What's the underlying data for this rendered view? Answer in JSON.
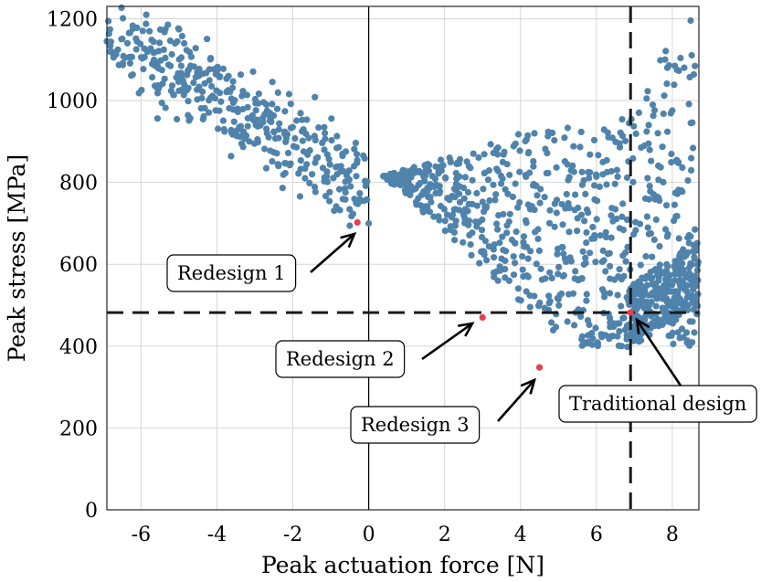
{
  "chart_data": {
    "type": "scatter",
    "title": "",
    "xlabel": "Peak actuation force [N]",
    "ylabel": "Peak stress [MPa]",
    "xlim": [
      -6.9,
      8.7
    ],
    "ylim": [
      0,
      1230
    ],
    "xticks": [
      -6,
      -4,
      -2,
      0,
      2,
      4,
      6,
      8
    ],
    "xtick_labels": [
      "-6",
      "-4",
      "-2",
      "0",
      "2",
      "4",
      "6",
      "8"
    ],
    "yticks": [
      0,
      200,
      400,
      600,
      800,
      1000,
      1200
    ],
    "ytick_labels": [
      "0",
      "200",
      "400",
      "600",
      "800",
      "1000",
      "1200"
    ],
    "grid": true,
    "zero_line_x": 0,
    "reference_lines": {
      "x": 6.9,
      "y": 482
    },
    "colors": {
      "samples": "#4f83ab",
      "highlight": "#e8404a",
      "reference": "#1a1a1a"
    },
    "series": [
      {
        "clusters": [
          {
            "x_range": [
              -6.9,
              0
            ],
            "x_center": -3.4,
            "y_at_x_min": 1160,
            "y_at_x_max": 790,
            "spread": 85,
            "count": 390
          },
          {
            "x_range": [
              0.2,
              5.6
            ],
            "y_range": [
              430,
              940
            ],
            "count": 430
          },
          {
            "x_range": [
              5.6,
              8.7
            ],
            "y_range": [
              400,
              1220
            ],
            "count": 320
          },
          {
            "x_range": [
              6.8,
              8.7
            ],
            "y_range": [
              430,
              700
            ],
            "count": 260
          }
        ],
        "sample_count": 1400
      },
      {
        "points": [
          {
            "x": -0.3,
            "y": 702
          },
          {
            "x": 3.0,
            "y": 470
          },
          {
            "x": 4.5,
            "y": 348
          },
          {
            "x": 6.9,
            "y": 482
          }
        ]
      }
    ],
    "annotations": [
      {
        "text": "Redesign 1",
        "target": [
          -0.3,
          702
        ]
      },
      {
        "text": "Redesign 2",
        "target": [
          3.0,
          470
        ]
      },
      {
        "text": "Redesign 3",
        "target": [
          4.5,
          348
        ]
      },
      {
        "text": "Traditional design",
        "target": [
          6.9,
          482
        ]
      }
    ]
  }
}
